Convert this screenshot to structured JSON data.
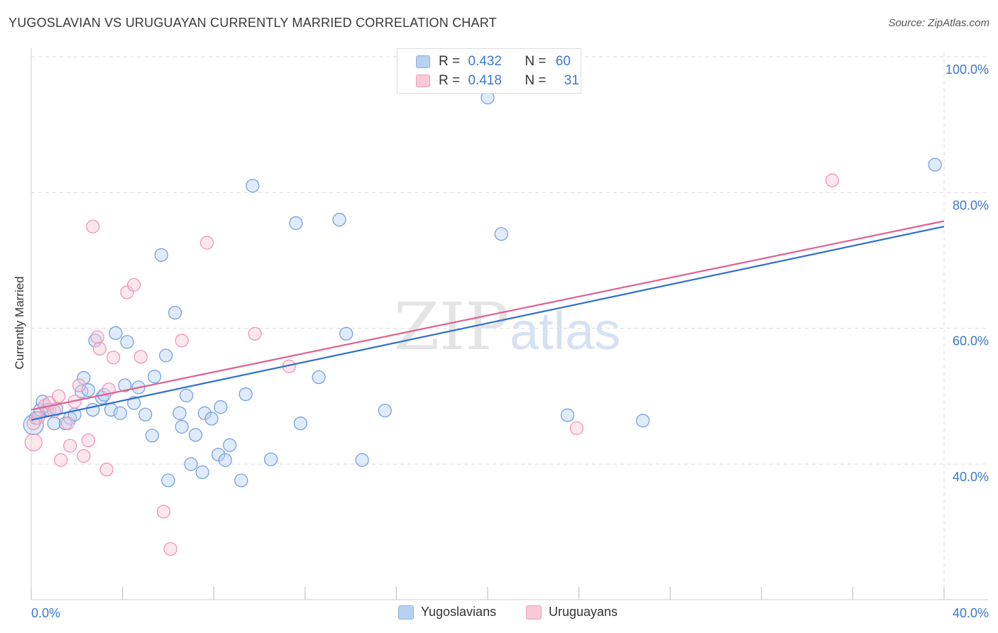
{
  "header": {
    "title": "YUGOSLAVIAN VS URUGUAYAN CURRENTLY MARRIED CORRELATION CHART",
    "source": "Source: ZipAtlas.com"
  },
  "legend": {
    "r_label": "R =",
    "n_label": "N =",
    "series": [
      {
        "name": "Yugoslavians",
        "r": "0.432",
        "n": "60",
        "color": "#6e9be0"
      },
      {
        "name": "Uruguayans",
        "r": "0.418",
        "n": "31",
        "color": "#f08fb0"
      }
    ]
  },
  "watermark": {
    "zip": "ZIP",
    "atlas": "atlas"
  },
  "colors": {
    "blue_line": "#2f6fd0",
    "pink_line": "#e0608e",
    "grid": "#dcdcdc",
    "axis_text": "#3b78cf"
  },
  "chart_data": {
    "type": "scatter",
    "xlabel": "",
    "ylabel": "Currently Married",
    "xlim": [
      0,
      40
    ],
    "ylim": [
      22,
      102
    ],
    "x_tick_labels": [
      {
        "value": 0,
        "label": "0.0%"
      },
      {
        "value": 40,
        "label": "40.0%"
      }
    ],
    "y_tick_labels": [
      {
        "value": 40,
        "label": "40.0%"
      },
      {
        "value": 60,
        "label": "60.0%"
      },
      {
        "value": 80,
        "label": "80.0%"
      },
      {
        "value": 100,
        "label": "100.0%"
      }
    ],
    "series": [
      {
        "name": "Yugoslavians",
        "trend": {
          "x0": 0,
          "y0": 46.5,
          "x1": 40,
          "y1": 75.0
        },
        "points": [
          [
            0.1,
            45.8
          ],
          [
            0.2,
            46.8
          ],
          [
            0.4,
            48.0
          ],
          [
            0.5,
            49.2
          ],
          [
            0.7,
            48.0
          ],
          [
            0.8,
            48.0
          ],
          [
            1.0,
            46.0
          ],
          [
            1.5,
            46.0
          ],
          [
            1.1,
            48.1
          ],
          [
            1.7,
            46.8
          ],
          [
            1.9,
            47.3
          ],
          [
            2.2,
            50.7
          ],
          [
            2.3,
            52.7
          ],
          [
            2.5,
            50.9
          ],
          [
            2.7,
            48.0
          ],
          [
            2.8,
            58.2
          ],
          [
            3.1,
            49.8
          ],
          [
            3.2,
            50.2
          ],
          [
            3.5,
            48.0
          ],
          [
            3.7,
            59.3
          ],
          [
            3.9,
            47.5
          ],
          [
            4.1,
            51.6
          ],
          [
            4.2,
            58.0
          ],
          [
            4.5,
            49.0
          ],
          [
            4.7,
            51.3
          ],
          [
            5.0,
            47.3
          ],
          [
            5.3,
            44.2
          ],
          [
            5.4,
            52.9
          ],
          [
            5.7,
            70.8
          ],
          [
            5.9,
            56.0
          ],
          [
            6.0,
            37.6
          ],
          [
            6.3,
            62.3
          ],
          [
            6.5,
            47.5
          ],
          [
            6.6,
            45.5
          ],
          [
            6.8,
            50.1
          ],
          [
            7.0,
            40.0
          ],
          [
            7.2,
            44.3
          ],
          [
            7.5,
            38.8
          ],
          [
            7.6,
            47.5
          ],
          [
            7.9,
            46.7
          ],
          [
            8.2,
            41.4
          ],
          [
            8.3,
            48.4
          ],
          [
            8.5,
            40.6
          ],
          [
            8.7,
            42.8
          ],
          [
            9.2,
            37.6
          ],
          [
            9.4,
            50.3
          ],
          [
            9.7,
            81.0
          ],
          [
            10.5,
            40.7
          ],
          [
            11.6,
            75.5
          ],
          [
            11.8,
            46.0
          ],
          [
            12.6,
            52.8
          ],
          [
            13.5,
            76.0
          ],
          [
            13.8,
            59.2
          ],
          [
            14.5,
            40.6
          ],
          [
            15.5,
            47.9
          ],
          [
            20.0,
            94.0
          ],
          [
            20.6,
            73.9
          ],
          [
            23.5,
            47.2
          ],
          [
            26.8,
            46.4
          ],
          [
            39.6,
            84.1
          ]
        ],
        "radii": [
          14,
          9,
          9,
          9,
          9,
          9,
          9,
          9,
          9,
          9,
          9,
          9,
          9,
          9,
          9,
          9,
          9,
          9,
          9,
          9,
          9,
          9,
          9,
          9,
          9,
          9,
          9,
          9,
          9,
          9,
          9,
          9,
          9,
          9,
          9,
          9,
          9,
          9,
          9,
          9,
          9,
          9,
          9,
          9,
          9,
          9,
          9,
          9,
          9,
          9,
          9,
          9,
          9,
          9,
          9,
          9,
          9,
          9,
          9,
          9
        ]
      },
      {
        "name": "Uruguayans",
        "trend": {
          "x0": 0,
          "y0": 48.0,
          "x1": 40,
          "y1": 75.8
        },
        "points": [
          [
            0.1,
            43.2
          ],
          [
            0.3,
            46.8
          ],
          [
            0.6,
            48.6
          ],
          [
            0.8,
            49.0
          ],
          [
            1.0,
            47.8
          ],
          [
            1.2,
            50.0
          ],
          [
            1.3,
            40.6
          ],
          [
            1.6,
            46.0
          ],
          [
            1.7,
            42.7
          ],
          [
            1.9,
            49.2
          ],
          [
            2.1,
            51.6
          ],
          [
            2.3,
            41.2
          ],
          [
            2.5,
            43.5
          ],
          [
            2.7,
            75.0
          ],
          [
            2.9,
            58.7
          ],
          [
            3.0,
            57.0
          ],
          [
            3.3,
            39.2
          ],
          [
            3.4,
            51.0
          ],
          [
            3.6,
            55.7
          ],
          [
            4.2,
            65.3
          ],
          [
            4.5,
            66.4
          ],
          [
            4.8,
            55.8
          ],
          [
            5.8,
            33.0
          ],
          [
            6.1,
            27.5
          ],
          [
            6.6,
            58.2
          ],
          [
            7.7,
            72.6
          ],
          [
            9.8,
            59.2
          ],
          [
            11.3,
            54.4
          ],
          [
            23.9,
            45.3
          ],
          [
            35.1,
            81.8
          ],
          [
            0.1,
            46.0
          ]
        ],
        "radii": [
          12,
          9,
          9,
          9,
          9,
          9,
          9,
          9,
          9,
          9,
          9,
          9,
          9,
          9,
          9,
          9,
          9,
          9,
          9,
          9,
          9,
          9,
          9,
          9,
          9,
          9,
          9,
          9,
          9,
          9,
          9
        ]
      }
    ]
  }
}
